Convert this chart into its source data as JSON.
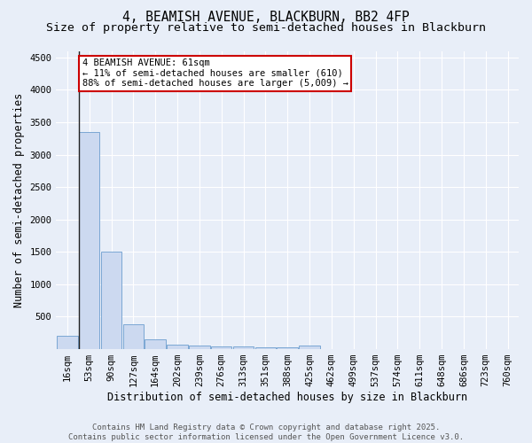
{
  "title1": "4, BEAMISH AVENUE, BLACKBURN, BB2 4FP",
  "title2": "Size of property relative to semi-detached houses in Blackburn",
  "xlabel": "Distribution of semi-detached houses by size in Blackburn",
  "ylabel": "Number of semi-detached properties",
  "footer": "Contains HM Land Registry data © Crown copyright and database right 2025.\nContains public sector information licensed under the Open Government Licence v3.0.",
  "bin_labels": [
    "16sqm",
    "53sqm",
    "90sqm",
    "127sqm",
    "164sqm",
    "202sqm",
    "239sqm",
    "276sqm",
    "313sqm",
    "351sqm",
    "388sqm",
    "425sqm",
    "462sqm",
    "499sqm",
    "537sqm",
    "574sqm",
    "611sqm",
    "648sqm",
    "686sqm",
    "723sqm",
    "760sqm"
  ],
  "bar_heights": [
    200,
    3350,
    1500,
    380,
    150,
    75,
    55,
    45,
    40,
    35,
    30,
    50,
    0,
    0,
    0,
    0,
    0,
    0,
    0,
    0,
    0
  ],
  "bar_color": "#ccd9f0",
  "bar_edge_color": "#7ba7d4",
  "property_label": "4 BEAMISH AVENUE: 61sqm",
  "annotation_line1": "← 11% of semi-detached houses are smaller (610)",
  "annotation_line2": "88% of semi-detached houses are larger (5,009) →",
  "annotation_box_facecolor": "#ffffff",
  "annotation_box_edgecolor": "#cc0000",
  "property_vline_x": 0.525,
  "ylim": [
    0,
    4600
  ],
  "yticks": [
    0,
    500,
    1000,
    1500,
    2000,
    2500,
    3000,
    3500,
    4000,
    4500
  ],
  "bg_color": "#e8eef8",
  "plot_bg_color": "#e8eef8",
  "grid_color": "#ffffff",
  "title1_fontsize": 10.5,
  "title2_fontsize": 9.5,
  "axis_label_fontsize": 8.5,
  "tick_fontsize": 7.5,
  "annot_fontsize": 7.5,
  "footer_fontsize": 6.5
}
